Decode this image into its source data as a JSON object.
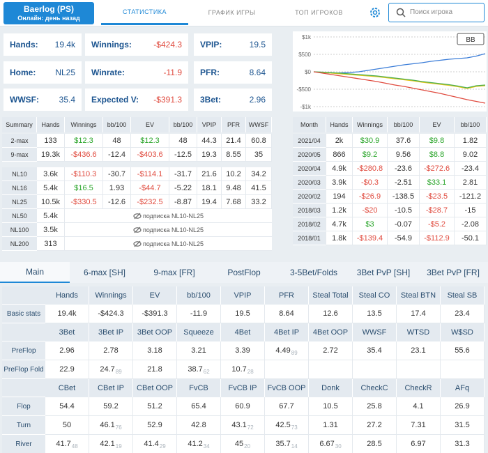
{
  "header": {
    "player_name": "Baerlog (PS)",
    "status": "Онлайн: день назад",
    "tabs": [
      "СТАТИСТИКА",
      "ГРАФИК ИГРЫ",
      "ТОП ИГРОКОВ"
    ],
    "active_tab": 0,
    "search_placeholder": "Поиск игрока"
  },
  "cards": [
    {
      "label": "Hands:",
      "value": "19.4k"
    },
    {
      "label": "Winnings:",
      "value": "-$424.3"
    },
    {
      "label": "VPIP:",
      "value": "19.5"
    },
    {
      "label": "Home:",
      "value": "NL25"
    },
    {
      "label": "Winrate:",
      "value": "-11.9"
    },
    {
      "label": "PFR:",
      "value": "8.64"
    },
    {
      "label": "WWSF:",
      "value": "35.4"
    },
    {
      "label": "Expected V:",
      "value": "-$391.3"
    },
    {
      "label": "3Bet:",
      "value": "2.96"
    }
  ],
  "chart_data": {
    "type": "line",
    "unit_button": "BB",
    "grid": true,
    "ylim": [
      -1000,
      1000
    ],
    "yticks": [
      {
        "value": 1000,
        "label": "$1k"
      },
      {
        "value": 500,
        "label": "$500"
      },
      {
        "value": 0,
        "label": "$0"
      },
      {
        "value": -500,
        "label": "-$500"
      },
      {
        "value": -1000,
        "label": "-$1k"
      }
    ],
    "series": [
      {
        "color": "#3b7dd8",
        "values": [
          0,
          -20,
          -40,
          -30,
          -20,
          0,
          40,
          80,
          120,
          160,
          200,
          230,
          260,
          300,
          330,
          360,
          380,
          400,
          450,
          520
        ]
      },
      {
        "color": "#e6c619",
        "values": [
          0,
          -20,
          -40,
          -60,
          -80,
          -100,
          -120,
          -140,
          -170,
          -200,
          -230,
          -260,
          -300,
          -330,
          -360,
          -390,
          -430,
          -480,
          -420,
          -400
        ]
      },
      {
        "color": "#4caf50",
        "values": [
          0,
          -10,
          -25,
          -40,
          -60,
          -80,
          -100,
          -120,
          -150,
          -180,
          -210,
          -240,
          -280,
          -310,
          -340,
          -370,
          -410,
          -460,
          -400,
          -380
        ]
      },
      {
        "color": "#e04b3f",
        "values": [
          0,
          -40,
          -80,
          -120,
          -160,
          -200,
          -240,
          -280,
          -330,
          -380,
          -420,
          -470,
          -520,
          -570,
          -620,
          -680,
          -740,
          -800,
          -850,
          -900
        ]
      }
    ]
  },
  "summary_table": {
    "headers": [
      "Summary",
      "Hands",
      "Winnings",
      "bb/100",
      "EV",
      "bb/100",
      "VPIP",
      "PFR",
      "WWSF"
    ],
    "groups": [
      [
        {
          "label": "2-max",
          "cells": [
            "133",
            "$12.3",
            "48",
            "$12.3",
            "48",
            "44.3",
            "21.4",
            "60.8"
          ]
        },
        {
          "label": "9-max",
          "cells": [
            "19.3k",
            "-$436.6",
            "-12.4",
            "-$403.6",
            "-12.5",
            "19.3",
            "8.55",
            "35"
          ]
        }
      ],
      [
        {
          "label": "NL10",
          "cells": [
            "3.6k",
            "-$110.3",
            "-30.7",
            "-$114.1",
            "-31.7",
            "21.6",
            "10.2",
            "34.2"
          ]
        },
        {
          "label": "NL16",
          "cells": [
            "5.4k",
            "$16.5",
            "1.93",
            "-$44.7",
            "-5.22",
            "18.1",
            "9.48",
            "41.5"
          ]
        },
        {
          "label": "NL25",
          "cells": [
            "10.5k",
            "-$330.5",
            "-12.6",
            "-$232.5",
            "-8.87",
            "19.4",
            "7.68",
            "33.2"
          ]
        },
        {
          "label": "NL50",
          "cells": [
            "5.4k"
          ],
          "locked": "подписка NL10-NL25"
        },
        {
          "label": "NL100",
          "cells": [
            "3.5k"
          ],
          "locked": "подписка NL10-NL25"
        },
        {
          "label": "NL200",
          "cells": [
            "313"
          ],
          "locked": "подписка NL10-NL25"
        }
      ]
    ]
  },
  "month_table": {
    "headers": [
      "Month",
      "Hands",
      "Winnings",
      "bb/100",
      "EV",
      "bb/100"
    ],
    "rows": [
      [
        "2021/04",
        "2k",
        "$30.9",
        "37.6",
        "$9.8",
        "1.82"
      ],
      [
        "2020/05",
        "866",
        "$9.2",
        "9.56",
        "$8.8",
        "9.02"
      ],
      [
        "2020/04",
        "4.9k",
        "-$280.8",
        "-23.6",
        "-$272.6",
        "-23.4"
      ],
      [
        "2020/03",
        "3.9k",
        "-$0.3",
        "-2.51",
        "$33.1",
        "2.81"
      ],
      [
        "2020/02",
        "194",
        "-$26.9",
        "-138.5",
        "-$23.5",
        "-121.2"
      ],
      [
        "2018/03",
        "1.2k",
        "-$20",
        "-10.5",
        "-$28.7",
        "-15"
      ],
      [
        "2018/02",
        "4.7k",
        "$3",
        "-0.07",
        "-$5.2",
        "-2.08"
      ],
      [
        "2018/01",
        "1.8k",
        "-$139.4",
        "-54.9",
        "-$112.9",
        "-50.1"
      ]
    ]
  },
  "stats_tabs": {
    "tabs": [
      "Main",
      "6-max [SH]",
      "9-max [FR]",
      "PostFlop",
      "3-5Bet/Folds",
      "3Bet PvP [SH]",
      "3Bet PvP [FR]"
    ],
    "active_tab": 0
  },
  "stats": {
    "sections": [
      {
        "headers": [
          "Hands",
          "Winnings",
          "EV",
          "bb/100",
          "VPIP",
          "PFR",
          "Steal Total",
          "Steal CO",
          "Steal BTN",
          "Steal SB"
        ],
        "rows": [
          {
            "label": "Basic stats",
            "cells": [
              "19.4k",
              "-$424.3",
              "-$391.3",
              "-11.9",
              "19.5",
              "8.64",
              "12.6",
              "13.5",
              "17.4",
              "23.4"
            ]
          }
        ]
      },
      {
        "headers": [
          "3Bet",
          "3Bet IP",
          "3Bet OOP",
          "Squeeze",
          "4Bet",
          "4Bet IP",
          "4Bet OOP",
          "WWSF",
          "WTSD",
          "W$SD"
        ],
        "rows": [
          {
            "label": "PreFlop",
            "cells": [
              "2.96",
              "2.78",
              "3.18",
              "3.21",
              "3.39",
              {
                "value": "4.49",
                "n": 89
              },
              "2.72",
              "35.4",
              "23.1",
              "55.6"
            ]
          },
          {
            "label": "PreFlop Fold",
            "cells": [
              "22.9",
              {
                "value": "24.7",
                "n": 89
              },
              "21.8",
              {
                "value": "38.7",
                "n": 62
              },
              {
                "value": "10.7",
                "n": 28
              }
            ]
          }
        ]
      },
      {
        "headers": [
          "CBet",
          "CBet IP",
          "CBet OOP",
          "FvCB",
          "FvCB IP",
          "FvCB OOP",
          "Donk",
          "CheckC",
          "CheckR",
          "AFq"
        ],
        "rows": [
          {
            "label": "Flop",
            "cells": [
              "54.4",
              "59.2",
              "51.2",
              "65.4",
              "60.9",
              "67.7",
              "10.5",
              "25.8",
              "4.1",
              "26.9"
            ]
          },
          {
            "label": "Turn",
            "cells": [
              "50",
              {
                "value": "46.1",
                "n": 76
              },
              "52.9",
              "42.8",
              {
                "value": "43.1",
                "n": 72
              },
              {
                "value": "42.5",
                "n": 73
              },
              "1.31",
              "27.2",
              "7.31",
              "31.5"
            ]
          },
          {
            "label": "River",
            "cells": [
              {
                "value": "41.7",
                "n": 48
              },
              {
                "value": "42.1",
                "n": 19
              },
              {
                "value": "41.4",
                "n": 29
              },
              {
                "value": "41.2",
                "n": 34
              },
              {
                "value": "45",
                "n": 20
              },
              {
                "value": "35.7",
                "n": 14
              },
              {
                "value": "6.67",
                "n": 30
              },
              "28.5",
              "6.97",
              "31.3"
            ]
          }
        ]
      }
    ]
  }
}
